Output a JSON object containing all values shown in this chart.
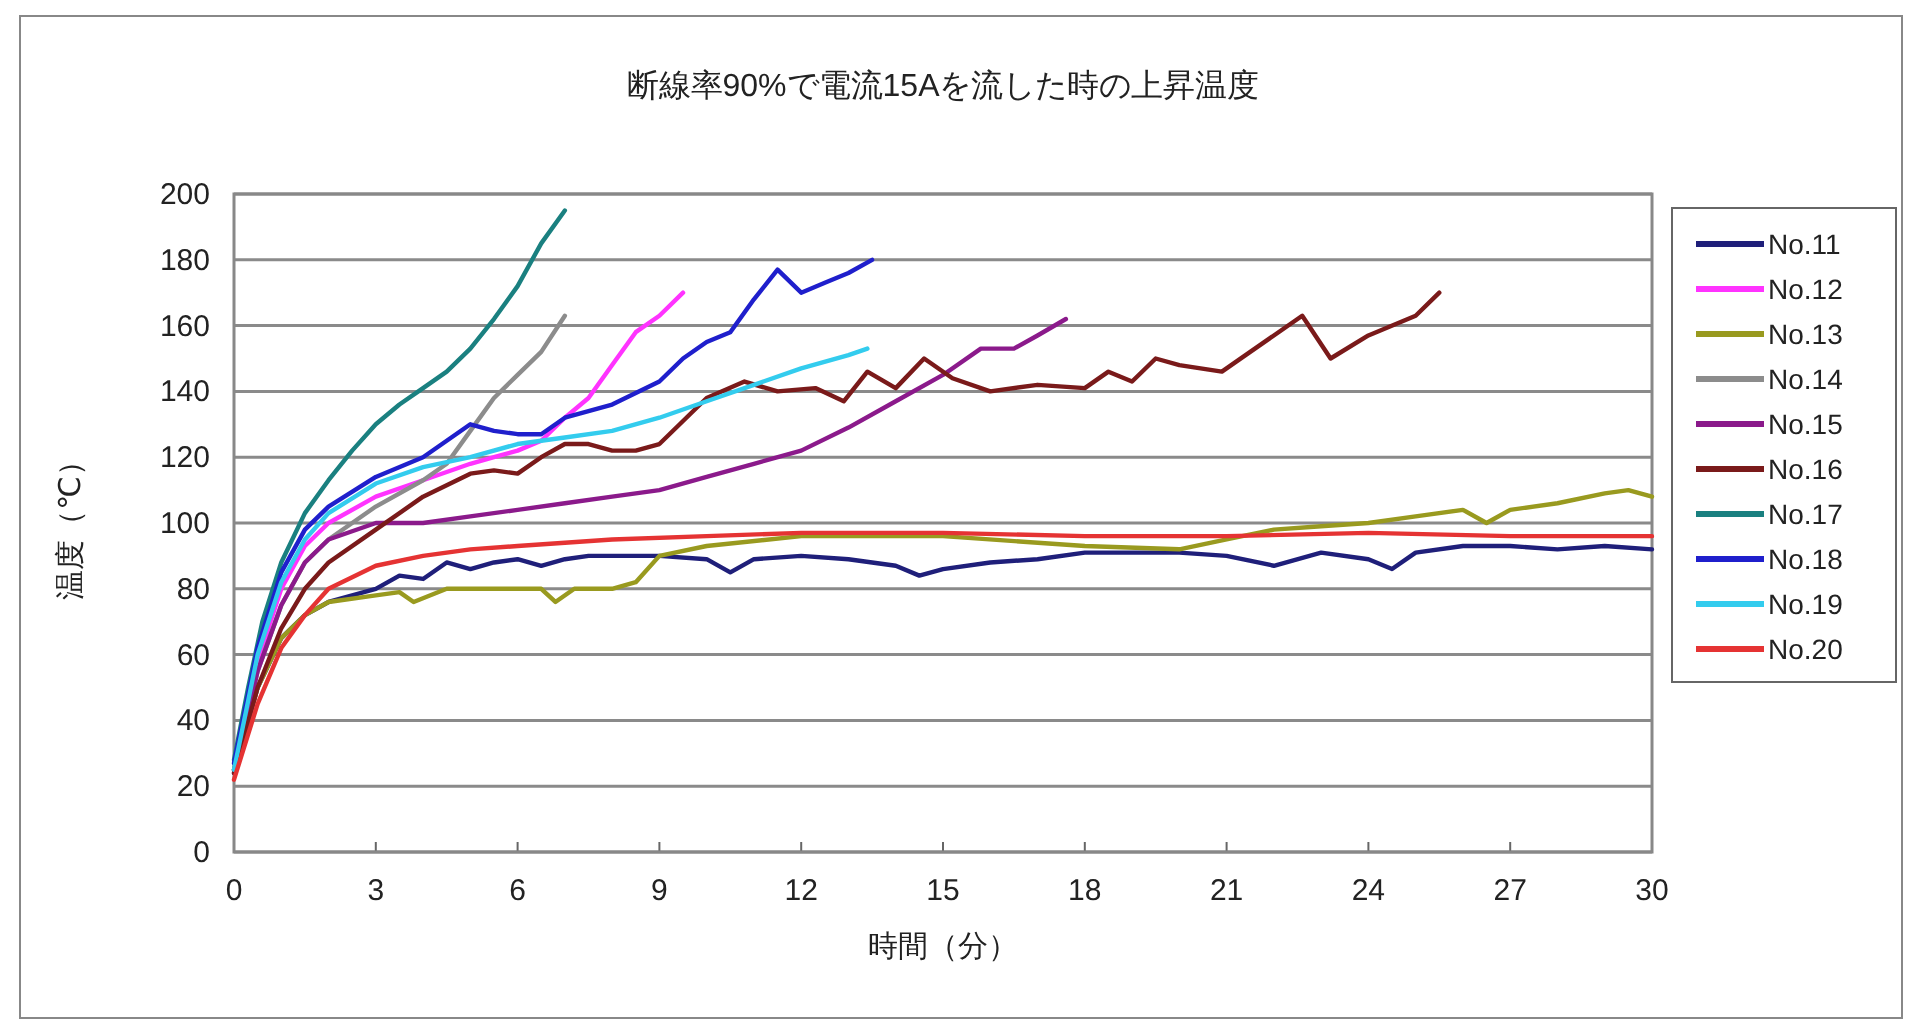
{
  "chart_data": {
    "type": "line",
    "title": "断線率90%で電流15Aを流した時の上昇温度",
    "xlabel": "時間（分）",
    "ylabel": "温度（℃）",
    "xlim": [
      0,
      30
    ],
    "ylim": [
      0,
      200
    ],
    "xticks": [
      0,
      3,
      6,
      9,
      12,
      15,
      18,
      21,
      24,
      27,
      30
    ],
    "yticks": [
      0,
      20,
      40,
      60,
      80,
      100,
      120,
      140,
      160,
      180,
      200
    ],
    "grid": "y",
    "legend": "right",
    "series": [
      {
        "name": "No.11",
        "color": "#1f1f7a",
        "x": [
          0,
          0.5,
          1,
          1.5,
          2,
          3,
          3.5,
          4,
          4.5,
          5,
          5.5,
          6,
          6.5,
          7,
          7.5,
          8,
          9,
          10,
          10.5,
          11,
          12,
          13,
          14,
          14.5,
          15,
          16,
          17,
          18,
          19,
          20,
          21,
          22,
          23,
          24,
          24.5,
          25,
          26,
          27,
          28,
          29,
          30
        ],
        "values": [
          25,
          50,
          65,
          72,
          76,
          80,
          84,
          83,
          88,
          86,
          88,
          89,
          87,
          89,
          90,
          90,
          90,
          89,
          85,
          89,
          90,
          89,
          87,
          84,
          86,
          88,
          89,
          91,
          91,
          91,
          90,
          87,
          91,
          89,
          86,
          91,
          93,
          93,
          92,
          93,
          92
        ]
      },
      {
        "name": "No.12",
        "color": "#ff33ff",
        "x": [
          0.5,
          1,
          1.5,
          2,
          3,
          4,
          5,
          5.5,
          6,
          6.5,
          7,
          7.5,
          8,
          8.5,
          9,
          9.5
        ],
        "values": [
          58,
          80,
          93,
          100,
          108,
          113,
          118,
          120,
          122,
          125,
          132,
          138,
          148,
          158,
          163,
          170
        ]
      },
      {
        "name": "No.13",
        "color": "#999a1f",
        "x": [
          0,
          0.5,
          1,
          1.5,
          2,
          3,
          3.5,
          3.8,
          4.5,
          5,
          6,
          6.5,
          6.8,
          7.2,
          8,
          8.5,
          9,
          10,
          12,
          15,
          18,
          20,
          21,
          22,
          23,
          24,
          25,
          26,
          26.5,
          27,
          28,
          29,
          29.5,
          30
        ],
        "values": [
          25,
          50,
          65,
          72,
          76,
          78,
          79,
          76,
          80,
          80,
          80,
          80,
          76,
          80,
          80,
          82,
          90,
          93,
          96,
          96,
          93,
          92,
          95,
          98,
          99,
          100,
          102,
          104,
          100,
          104,
          106,
          109,
          110,
          108
        ]
      },
      {
        "name": "No.14",
        "color": "#8c8c8c",
        "x": [
          0,
          0.5,
          1,
          1.5,
          2,
          3,
          4,
          4.5,
          5,
          5.5,
          6,
          6.5,
          7
        ],
        "values": [
          25,
          55,
          75,
          88,
          95,
          105,
          113,
          118,
          128,
          138,
          145,
          152,
          163
        ]
      },
      {
        "name": "No.15",
        "color": "#8b1a8b",
        "x": [
          0,
          0.5,
          1,
          1.5,
          2,
          3,
          4,
          5,
          6,
          7,
          8,
          9,
          10,
          11,
          12,
          13,
          14,
          15,
          15.8,
          16.5,
          17,
          17.6
        ],
        "values": [
          24,
          55,
          75,
          88,
          95,
          100,
          100,
          102,
          104,
          106,
          108,
          110,
          114,
          118,
          122,
          129,
          137,
          145,
          153,
          153,
          157,
          162
        ]
      },
      {
        "name": "No.16",
        "color": "#7a1a1a",
        "x": [
          0,
          0.5,
          1,
          1.5,
          2,
          3,
          4,
          5,
          5.5,
          6,
          6.5,
          7,
          7.5,
          8,
          8.5,
          9,
          9.5,
          10,
          10.8,
          11.5,
          12.3,
          12.9,
          13.4,
          14,
          14.6,
          15.2,
          16,
          17,
          18,
          18.5,
          19,
          19.5,
          20,
          20.9,
          21.5,
          22,
          22.6,
          23.2,
          24,
          25,
          25.5
        ],
        "values": [
          24,
          50,
          68,
          80,
          88,
          98,
          108,
          115,
          116,
          115,
          120,
          124,
          124,
          122,
          122,
          124,
          131,
          138,
          143,
          140,
          141,
          137,
          146,
          141,
          150,
          144,
          140,
          142,
          141,
          146,
          143,
          150,
          148,
          146,
          152,
          157,
          163,
          150,
          157,
          163,
          170
        ]
      },
      {
        "name": "No.17",
        "color": "#1a8080",
        "x": [
          0,
          0.3,
          0.6,
          1,
          1.5,
          2,
          2.5,
          3,
          3.5,
          4,
          4.5,
          5,
          5.5,
          6,
          6.5,
          7
        ],
        "values": [
          28,
          50,
          70,
          88,
          103,
          113,
          122,
          130,
          136,
          141,
          146,
          153,
          162,
          172,
          185,
          195
        ]
      },
      {
        "name": "No.18",
        "color": "#1f1fcc",
        "x": [
          0,
          0.5,
          1,
          1.5,
          2,
          3,
          4,
          4.5,
          5,
          5.5,
          6,
          6.5,
          7,
          8,
          9,
          9.5,
          10,
          10.5,
          11,
          11.5,
          12,
          12.5,
          13,
          13.5
        ],
        "values": [
          27,
          62,
          85,
          98,
          105,
          114,
          120,
          125,
          130,
          128,
          127,
          127,
          132,
          136,
          143,
          150,
          155,
          158,
          168,
          177,
          170,
          173,
          176,
          180
        ]
      },
      {
        "name": "No.19",
        "color": "#33ccee",
        "x": [
          0,
          0.5,
          1,
          1.5,
          2,
          3,
          4,
          5,
          6,
          7,
          8,
          9,
          10,
          11,
          12,
          13,
          13.4
        ],
        "values": [
          25,
          60,
          82,
          95,
          103,
          112,
          117,
          120,
          124,
          126,
          128,
          132,
          137,
          142,
          147,
          151,
          153
        ]
      },
      {
        "name": "No.20",
        "color": "#e53333",
        "x": [
          0,
          0.5,
          1,
          1.5,
          2,
          3,
          4,
          5,
          6,
          8,
          10,
          12,
          15,
          18,
          21,
          24,
          27,
          30
        ],
        "values": [
          22,
          45,
          62,
          72,
          80,
          87,
          90,
          92,
          93,
          95,
          96,
          97,
          97,
          96,
          96,
          97,
          96,
          96
        ]
      }
    ]
  }
}
